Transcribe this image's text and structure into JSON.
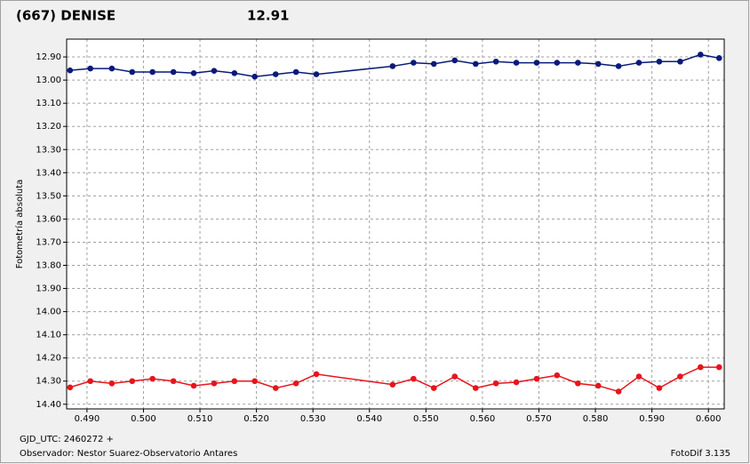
{
  "chart_data": {
    "type": "line",
    "title": "(667) DENISE",
    "title_color": "#e8141c",
    "subtitle": "12.91",
    "subtitle_color": "#1a2a8a",
    "ylabel": "Fotometría absoluta",
    "xlabel": "GJD_UTC: 2460272 +",
    "observer": "Observador: Nestor Suarez-Observatorio Antares",
    "software": "FotoDif 3.135",
    "y_inverted": true,
    "grid": true,
    "xlim": [
      0.4864,
      0.6028
    ],
    "ylim": [
      12.823,
      14.42
    ],
    "xticks": [
      {
        "value": 0.49,
        "label": "0.490"
      },
      {
        "value": 0.5,
        "label": "0.500"
      },
      {
        "value": 0.51,
        "label": "0.510"
      },
      {
        "value": 0.52,
        "label": "0.520"
      },
      {
        "value": 0.53,
        "label": "0.530"
      },
      {
        "value": 0.54,
        "label": "0.540"
      },
      {
        "value": 0.55,
        "label": "0.550"
      },
      {
        "value": 0.56,
        "label": "0.560"
      },
      {
        "value": 0.57,
        "label": "0.570"
      },
      {
        "value": 0.58,
        "label": "0.580"
      },
      {
        "value": 0.59,
        "label": "0.590"
      },
      {
        "value": 0.6,
        "label": "0.600"
      }
    ],
    "yticks": [
      {
        "value": 12.9,
        "label": "12.90"
      },
      {
        "value": 13.0,
        "label": "13.00"
      },
      {
        "value": 13.1,
        "label": "13.10"
      },
      {
        "value": 13.2,
        "label": "13.20"
      },
      {
        "value": 13.3,
        "label": "13.30"
      },
      {
        "value": 13.4,
        "label": "13.40"
      },
      {
        "value": 13.5,
        "label": "13.50"
      },
      {
        "value": 13.6,
        "label": "13.60"
      },
      {
        "value": 13.7,
        "label": "13.70"
      },
      {
        "value": 13.8,
        "label": "13.80"
      },
      {
        "value": 13.9,
        "label": "13.90"
      },
      {
        "value": 14.0,
        "label": "14.00"
      },
      {
        "value": 14.1,
        "label": "14.10"
      },
      {
        "value": 14.2,
        "label": "14.20"
      },
      {
        "value": 14.3,
        "label": "14.30"
      },
      {
        "value": 14.4,
        "label": "14.40"
      }
    ],
    "x": [
      0.487,
      0.4906,
      0.4944,
      0.498,
      0.5016,
      0.5053,
      0.5089,
      0.5125,
      0.5161,
      0.5197,
      0.5234,
      0.527,
      0.5306,
      0.5441,
      0.5478,
      0.5514,
      0.5551,
      0.5588,
      0.5624,
      0.566,
      0.5696,
      0.5732,
      0.5769,
      0.5805,
      0.5841,
      0.5877,
      0.5913,
      0.595,
      0.5986,
      0.6019
    ],
    "series": [
      {
        "color": "#0a1a7a",
        "values": [
          12.958,
          12.95,
          12.95,
          12.965,
          12.965,
          12.965,
          12.97,
          12.96,
          12.97,
          12.985,
          12.975,
          12.965,
          12.975,
          12.94,
          12.925,
          12.93,
          12.915,
          12.93,
          12.92,
          12.925,
          12.925,
          12.925,
          12.925,
          12.93,
          12.94,
          12.925,
          12.92,
          12.92,
          12.89,
          12.905
        ]
      },
      {
        "color": "#e8141c",
        "values": [
          14.327,
          14.3,
          14.31,
          14.3,
          14.29,
          14.3,
          14.32,
          14.31,
          14.3,
          14.3,
          14.33,
          14.31,
          14.27,
          14.315,
          14.29,
          14.33,
          14.28,
          14.33,
          14.31,
          14.305,
          14.29,
          14.275,
          14.31,
          14.32,
          14.345,
          14.28,
          14.33,
          14.28,
          14.24,
          14.24
        ]
      }
    ]
  }
}
